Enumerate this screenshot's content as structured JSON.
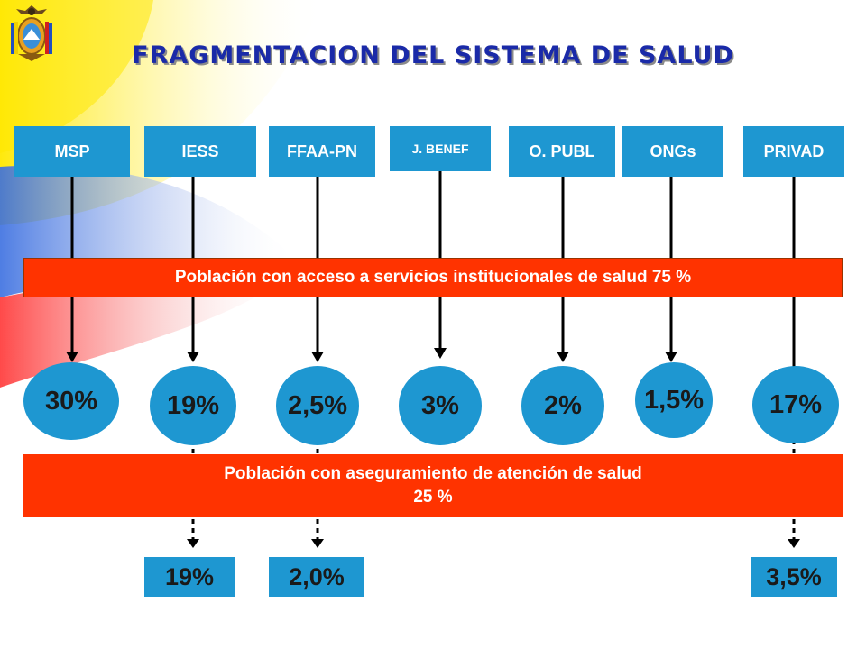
{
  "title": "FRAGMENTACION DEL SISTEMA DE SALUD",
  "institutions": [
    "MSP",
    "IESS",
    "FFAA-PN",
    "J. BENEF",
    "O. PUBL",
    "ONGs",
    "PRIVAD"
  ],
  "access_band": {
    "text": "Población con acceso a servicios institucionales de salud 75 %",
    "value_percent": 75
  },
  "access_shares": [
    "30%",
    "19%",
    "2,5%",
    "3%",
    "2%",
    "1,5%",
    "17%"
  ],
  "insurance_band": {
    "line1": "Población con aseguramiento de atención de salud",
    "line2": "25 %",
    "value_percent": 25
  },
  "insurance_shares": {
    "IESS": "19%",
    "FFAA-PN": "2,0%",
    "PRIVAD": "3,5%"
  },
  "colors": {
    "title": "#1a2aa8",
    "institution_fill": "#1e97d1",
    "band_fill": "#ff3300",
    "arrow": "#000000",
    "flag_yellow": "#ffe800",
    "flag_blue": "#2a5fd0",
    "flag_red": "#e01010"
  },
  "logo": "ecuador-coat-of-arms"
}
